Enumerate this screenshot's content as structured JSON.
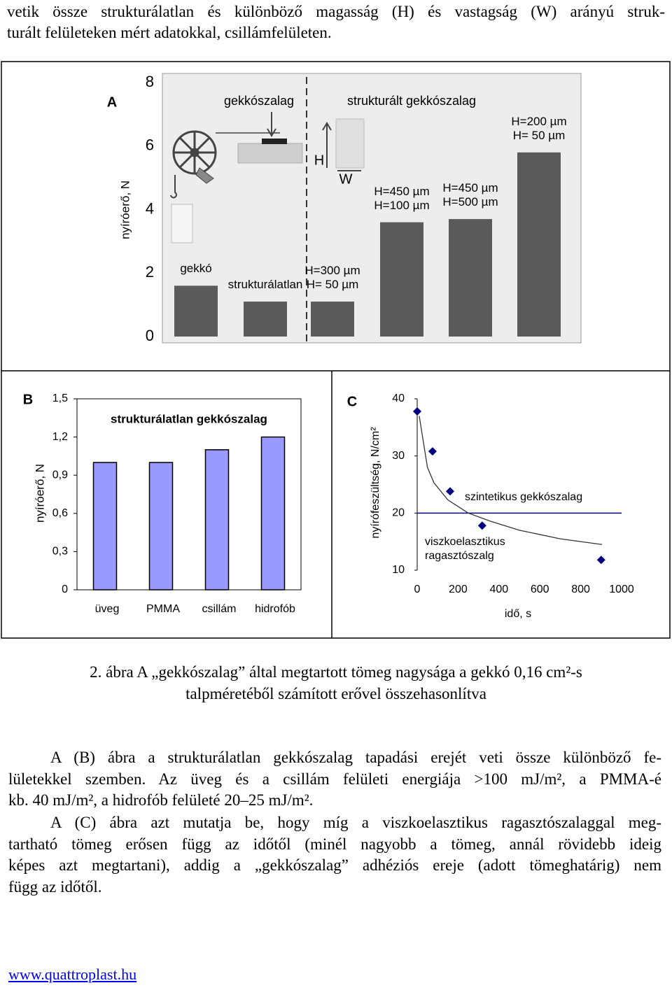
{
  "text": {
    "intro_lines": [
      "vetik össze strukturálatlan és különböző magasság (H) és vastagság (W) arányú struk-",
      "turált felületeken mért adatokkal, csillámfelületen."
    ],
    "caption_lines": [
      "2. ábra A „gekkószalag” által megtartott tömeg nagysága a gekkó 0,16 cm²-s",
      "talpméretéből számított erővel összehasonlítva"
    ],
    "paragraphs": [
      [
        "A (B) ábra a strukturálatlan gekkószalag tapadási erejét veti össze különböző fe-",
        "lületekkel szemben. Az üveg és a csillám felületi energiája >100 mJ/m², a PMMA-é",
        "kb. 40 mJ/m², a hidrofób felületé 20–25 mJ/m²."
      ],
      [
        "A (C) ábra azt mutatja be, hogy míg a viszkoelasztikus ragasztószalaggal meg-",
        "tartható tömeg erősen függ az időtől (minél nagyobb a tömeg, annál rövidebb ideig",
        "képes azt megtartani), addig a „gekkószalag” adhéziós ereje (adott tömeghatárig) nem",
        "függ az időtől."
      ]
    ],
    "footer_link": "www.quattroplast.hu"
  },
  "chart_data": [
    {
      "type": "bar",
      "label": "A",
      "titles": [
        "gekkószalag",
        "strukturált gekkószalag"
      ],
      "ylabel": "nyíróerő, N",
      "illustration_labels": [
        "H",
        "W"
      ],
      "categories": [
        "gekkó",
        "strukturálatlan",
        "H=300 µm\nH= 50 µm",
        "H=450 µm\nH=100 µm",
        "H=450 µm\nH=500 µm",
        "H=200 µm\nH= 50 µm"
      ],
      "values": [
        1.6,
        1.1,
        1.1,
        3.6,
        3.7,
        5.8
      ],
      "color": "#5a5a5a",
      "ylim": [
        0,
        8
      ],
      "yticks": [
        0,
        2,
        4,
        6,
        8
      ]
    },
    {
      "type": "bar",
      "label": "B",
      "title": "strukturálatlan gekkószalag",
      "ylabel": "nyíróerő, N",
      "categories": [
        "üveg",
        "PMMA",
        "csillám",
        "hidrofób"
      ],
      "values": [
        1.0,
        1.0,
        1.1,
        1.2
      ],
      "color": "#9999ff",
      "ylim": [
        0,
        1.5
      ],
      "yticks": [
        0,
        {
          "value": 0.3,
          "label": "0,3"
        },
        {
          "value": 0.6,
          "label": "0,6"
        },
        {
          "value": 0.9,
          "label": "0,9"
        },
        {
          "value": 1.2,
          "label": "1,2"
        },
        {
          "value": 1.5,
          "label": "1,5"
        }
      ]
    },
    {
      "type": "scatter",
      "label": "C",
      "xlabel": "idő, s",
      "ylabel": "nyírófeszültség, N/cm²",
      "xlim": [
        0,
        1000
      ],
      "ylim": [
        10,
        40
      ],
      "xticks": [
        0,
        200,
        400,
        600,
        800,
        1000
      ],
      "yticks": [
        10,
        20,
        30,
        40
      ],
      "series": [
        {
          "style": "points",
          "color": "#000080",
          "x": [
            0,
            75,
            161,
            318,
            900
          ],
          "values": [
            37.8,
            30.8,
            23.8,
            17.8,
            11.8
          ]
        },
        {
          "style": "line",
          "name": "szintetikus gekkószalag",
          "color": "#000080",
          "x": [
            0,
            1000
          ],
          "values": [
            20,
            20
          ]
        },
        {
          "style": "line",
          "name": "viszkoelasztikus\nragasztószalg",
          "color": "#333333",
          "x": [
            10,
            50,
            82,
            150,
            250,
            356,
            500,
            700,
            904
          ],
          "values": [
            37,
            28,
            25.3,
            22.3,
            20,
            18.6,
            17,
            15.5,
            14.5
          ]
        }
      ]
    }
  ]
}
